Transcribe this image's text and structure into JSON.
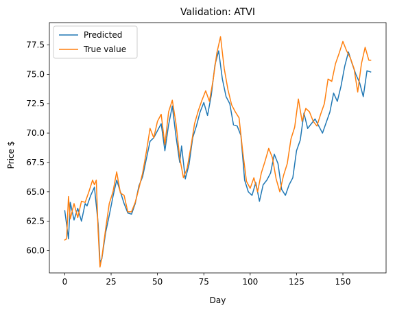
{
  "chart_data": {
    "type": "line",
    "title": "Validation: ATVI",
    "xlabel": "Day",
    "ylabel": "Price $",
    "xlim": [
      -8.3,
      173.3
    ],
    "ylim": [
      58.1,
      79.4
    ],
    "xticks": [
      0,
      25,
      50,
      75,
      100,
      125,
      150
    ],
    "xtick_labels": [
      "0",
      "25",
      "50",
      "75",
      "100",
      "125",
      "150"
    ],
    "yticks": [
      60.0,
      62.5,
      65.0,
      67.5,
      70.0,
      72.5,
      75.0,
      77.5
    ],
    "ytick_labels": [
      "60.0",
      "62.5",
      "65.0",
      "67.5",
      "70.0",
      "72.5",
      "75.0",
      "77.5"
    ],
    "legend": "top-left",
    "grid": false,
    "series": [
      {
        "name": "Predicted",
        "color": "#1f77b4",
        "x": [
          0,
          2,
          3,
          5,
          7,
          9,
          11,
          12,
          14,
          16,
          18,
          19,
          20,
          22,
          24,
          26,
          28,
          30,
          32,
          34,
          36,
          38,
          40,
          42,
          44,
          46,
          48,
          50,
          52,
          54,
          56,
          58,
          60,
          62,
          63,
          65,
          67,
          69,
          71,
          73,
          75,
          77,
          79,
          81,
          83,
          85,
          87,
          89,
          91,
          93,
          95,
          97,
          99,
          101,
          103,
          105,
          107,
          109,
          111,
          113,
          115,
          117,
          119,
          121,
          123,
          125,
          127,
          129,
          131,
          133,
          135,
          137,
          139,
          141,
          143,
          145,
          147,
          149,
          151,
          153,
          155,
          157,
          159,
          161,
          163,
          165
        ],
        "y": [
          63.4,
          61.0,
          64.1,
          62.6,
          63.6,
          62.5,
          64.0,
          63.8,
          64.7,
          65.4,
          62.3,
          59.0,
          59.3,
          61.5,
          63.0,
          64.6,
          66.0,
          65.0,
          64.0,
          63.2,
          63.1,
          64.0,
          65.5,
          66.3,
          67.8,
          69.3,
          69.6,
          70.2,
          70.8,
          68.5,
          70.7,
          72.3,
          69.7,
          67.5,
          68.9,
          66.1,
          67.3,
          69.6,
          70.6,
          71.8,
          72.6,
          71.5,
          73.2,
          75.8,
          77.0,
          74.6,
          73.1,
          72.5,
          70.7,
          70.6,
          69.8,
          66.0,
          65.0,
          64.7,
          65.8,
          64.2,
          65.6,
          66.0,
          66.6,
          68.2,
          67.4,
          65.2,
          64.7,
          65.6,
          66.2,
          68.5,
          69.4,
          71.7,
          70.4,
          70.8,
          71.2,
          70.6,
          70.0,
          70.9,
          71.8,
          73.4,
          72.7,
          74.0,
          75.7,
          76.9,
          75.9,
          75.0,
          74.3,
          73.1,
          75.3,
          75.2
        ]
      },
      {
        "name": "True value",
        "color": "#ff7f0e",
        "x": [
          0,
          1,
          2,
          3,
          5,
          7,
          9,
          11,
          13,
          15,
          16,
          17,
          18,
          19,
          20,
          22,
          24,
          26,
          28,
          30,
          32,
          34,
          36,
          38,
          40,
          42,
          44,
          46,
          48,
          50,
          52,
          54,
          56,
          58,
          60,
          62,
          64,
          66,
          68,
          70,
          72,
          74,
          76,
          78,
          80,
          82,
          84,
          86,
          88,
          90,
          92,
          94,
          96,
          98,
          100,
          102,
          104,
          106,
          108,
          110,
          112,
          114,
          116,
          118,
          120,
          122,
          124,
          126,
          128,
          130,
          132,
          134,
          136,
          138,
          140,
          142,
          144,
          146,
          148,
          150,
          152,
          154,
          156,
          158,
          160,
          162,
          164,
          165
        ],
        "y": [
          60.9,
          61.0,
          64.6,
          62.7,
          64.0,
          62.8,
          64.2,
          64.1,
          65.0,
          66.0,
          65.6,
          66.0,
          61.6,
          58.6,
          59.4,
          61.8,
          64.0,
          65.0,
          66.7,
          64.9,
          64.7,
          63.3,
          63.3,
          64.1,
          65.3,
          66.6,
          68.4,
          70.4,
          69.6,
          71.0,
          71.6,
          69.0,
          71.8,
          72.8,
          70.8,
          67.9,
          66.2,
          67.0,
          68.8,
          70.8,
          71.9,
          72.8,
          73.6,
          72.7,
          74.5,
          76.8,
          78.2,
          75.5,
          73.7,
          72.4,
          71.8,
          71.3,
          68.4,
          65.9,
          65.3,
          66.2,
          65.0,
          66.6,
          67.6,
          68.7,
          67.9,
          66.1,
          65.0,
          66.4,
          67.4,
          69.5,
          70.5,
          72.9,
          71.0,
          72.1,
          71.8,
          71.0,
          70.6,
          71.6,
          72.5,
          74.6,
          74.4,
          75.9,
          76.8,
          77.8,
          77.0,
          76.4,
          75.5,
          73.5,
          75.9,
          77.3,
          76.2,
          76.2
        ]
      }
    ]
  }
}
